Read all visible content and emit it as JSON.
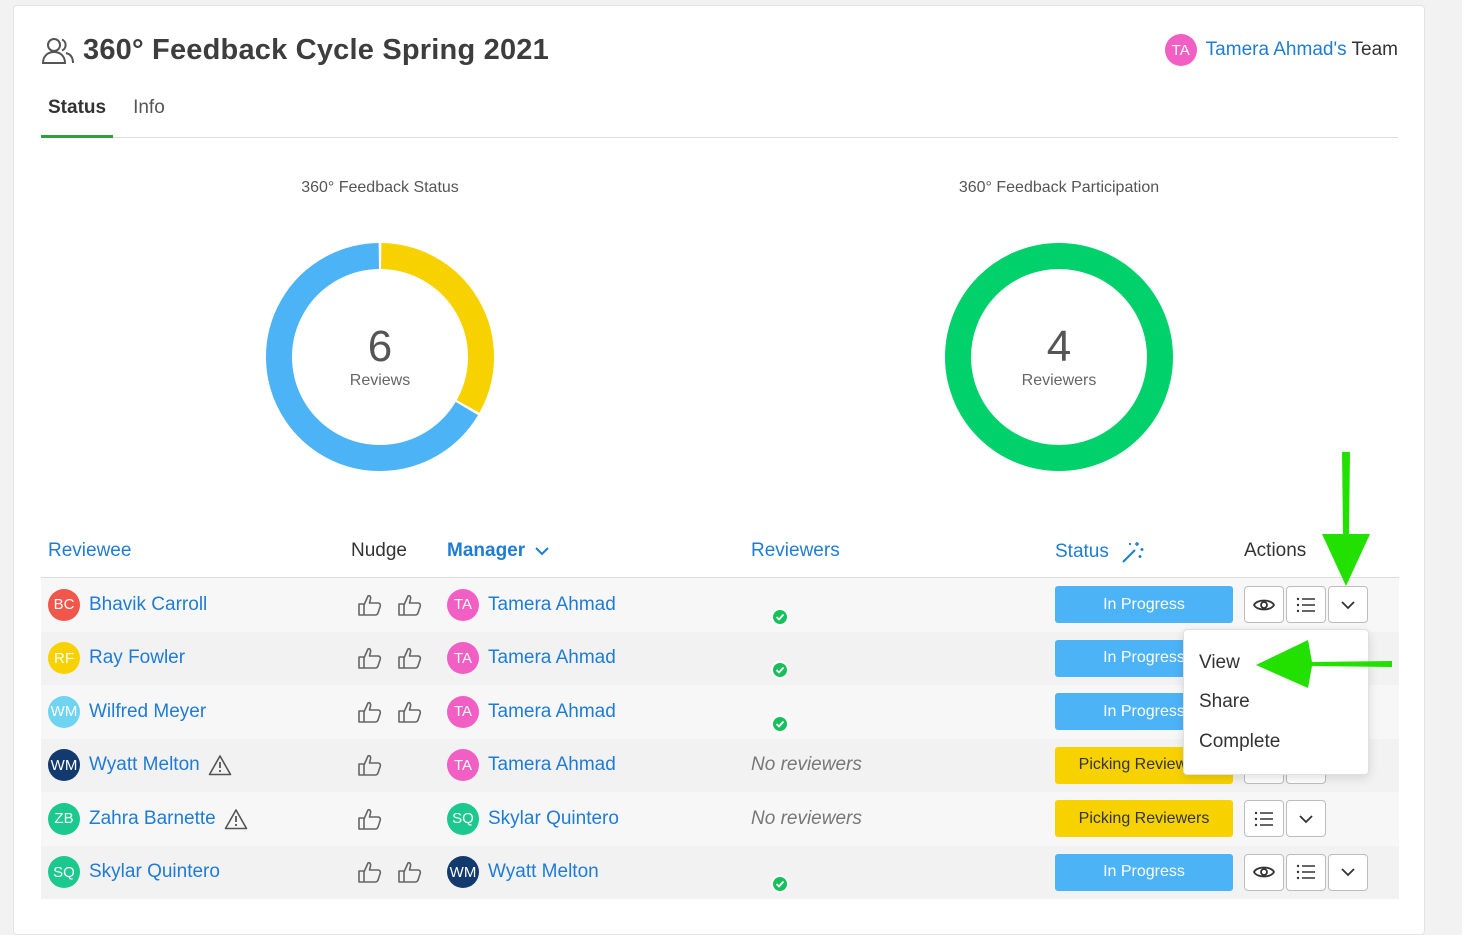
{
  "header": {
    "title": "360° Feedback Cycle Spring 2021",
    "team_initials": "TA",
    "team_owner": "Tamera Ahmad's",
    "team_suffix": " Team"
  },
  "tabs": [
    {
      "label": "Status",
      "active": true
    },
    {
      "label": "Info",
      "active": false
    }
  ],
  "charts": {
    "status": {
      "title": "360° Feedback Status",
      "value": "6",
      "label": "Reviews"
    },
    "participation": {
      "title": "360° Feedback Participation",
      "value": "4",
      "label": "Reviewers"
    }
  },
  "chart_data": [
    {
      "type": "pie",
      "title": "360° Feedback Status",
      "center_value": 6,
      "center_label": "Reviews",
      "slices": [
        {
          "value": 4,
          "color": "#4db3f7"
        },
        {
          "value": 2,
          "color": "#f7d200"
        }
      ]
    },
    {
      "type": "pie",
      "title": "360° Feedback Participation",
      "center_value": 4,
      "center_label": "Reviewers",
      "slices": [
        {
          "value": 4,
          "color": "#00d16b"
        }
      ]
    }
  ],
  "table": {
    "headers": {
      "reviewee": "Reviewee",
      "nudge": "Nudge",
      "manager": "Manager",
      "reviewers": "Reviewers",
      "status": "Status",
      "actions": "Actions"
    },
    "rows": [
      {
        "initials": "BC",
        "color": "#f0564a",
        "name": "Bhavik Carroll",
        "warn": false,
        "two_thumbs": true,
        "mgr_initials": "TA",
        "mgr_color": "#f25fc4",
        "manager": "Tamera Ahmad",
        "has_reviewer": true,
        "reviewers_text": "",
        "status": "In Progress",
        "status_kind": "prog",
        "show_view": true,
        "show_chevron": true
      },
      {
        "initials": "RF",
        "color": "#f7d200",
        "name": "Ray Fowler",
        "warn": false,
        "two_thumbs": true,
        "mgr_initials": "TA",
        "mgr_color": "#f25fc4",
        "manager": "Tamera Ahmad",
        "has_reviewer": true,
        "reviewers_text": "",
        "status": "In Progress",
        "status_kind": "prog",
        "show_view": true,
        "show_chevron": true
      },
      {
        "initials": "WM",
        "color": "#6fd3f2",
        "name": "Wilfred Meyer",
        "warn": false,
        "two_thumbs": true,
        "mgr_initials": "TA",
        "mgr_color": "#f25fc4",
        "manager": "Tamera Ahmad",
        "has_reviewer": true,
        "reviewers_text": "",
        "status": "In Progress",
        "status_kind": "prog",
        "show_view": true,
        "show_chevron": true
      },
      {
        "initials": "WM",
        "color": "#123a6e",
        "name": "Wyatt Melton",
        "warn": true,
        "two_thumbs": false,
        "mgr_initials": "TA",
        "mgr_color": "#f25fc4",
        "manager": "Tamera Ahmad",
        "has_reviewer": false,
        "reviewers_text": "No reviewers",
        "status": "Picking Reviewers",
        "status_kind": "pick",
        "show_view": false,
        "show_chevron": true
      },
      {
        "initials": "ZB",
        "color": "#1bc98e",
        "name": "Zahra Barnette",
        "warn": true,
        "two_thumbs": false,
        "mgr_initials": "SQ",
        "mgr_color": "#1bc98e",
        "manager": "Skylar Quintero",
        "has_reviewer": false,
        "reviewers_text": "No reviewers",
        "status": "Picking Reviewers",
        "status_kind": "pick",
        "show_view": false,
        "show_chevron": true
      },
      {
        "initials": "SQ",
        "color": "#1bc98e",
        "name": "Skylar Quintero",
        "warn": false,
        "two_thumbs": true,
        "mgr_initials": "WM",
        "mgr_color": "#123a6e",
        "manager": "Wyatt Melton",
        "has_reviewer": true,
        "reviewers_text": "",
        "status": "In Progress",
        "status_kind": "prog",
        "show_view": true,
        "show_chevron": true
      }
    ]
  },
  "dropdown": {
    "items": [
      "View",
      "Share",
      "Complete"
    ]
  },
  "colors": {
    "accent": "#1f7cd6",
    "tab_underline": "#2e9e3a",
    "in_progress": "#4db3f7",
    "picking": "#f7d200",
    "participation": "#00d16b",
    "annotation_arrow": "#22e000"
  }
}
